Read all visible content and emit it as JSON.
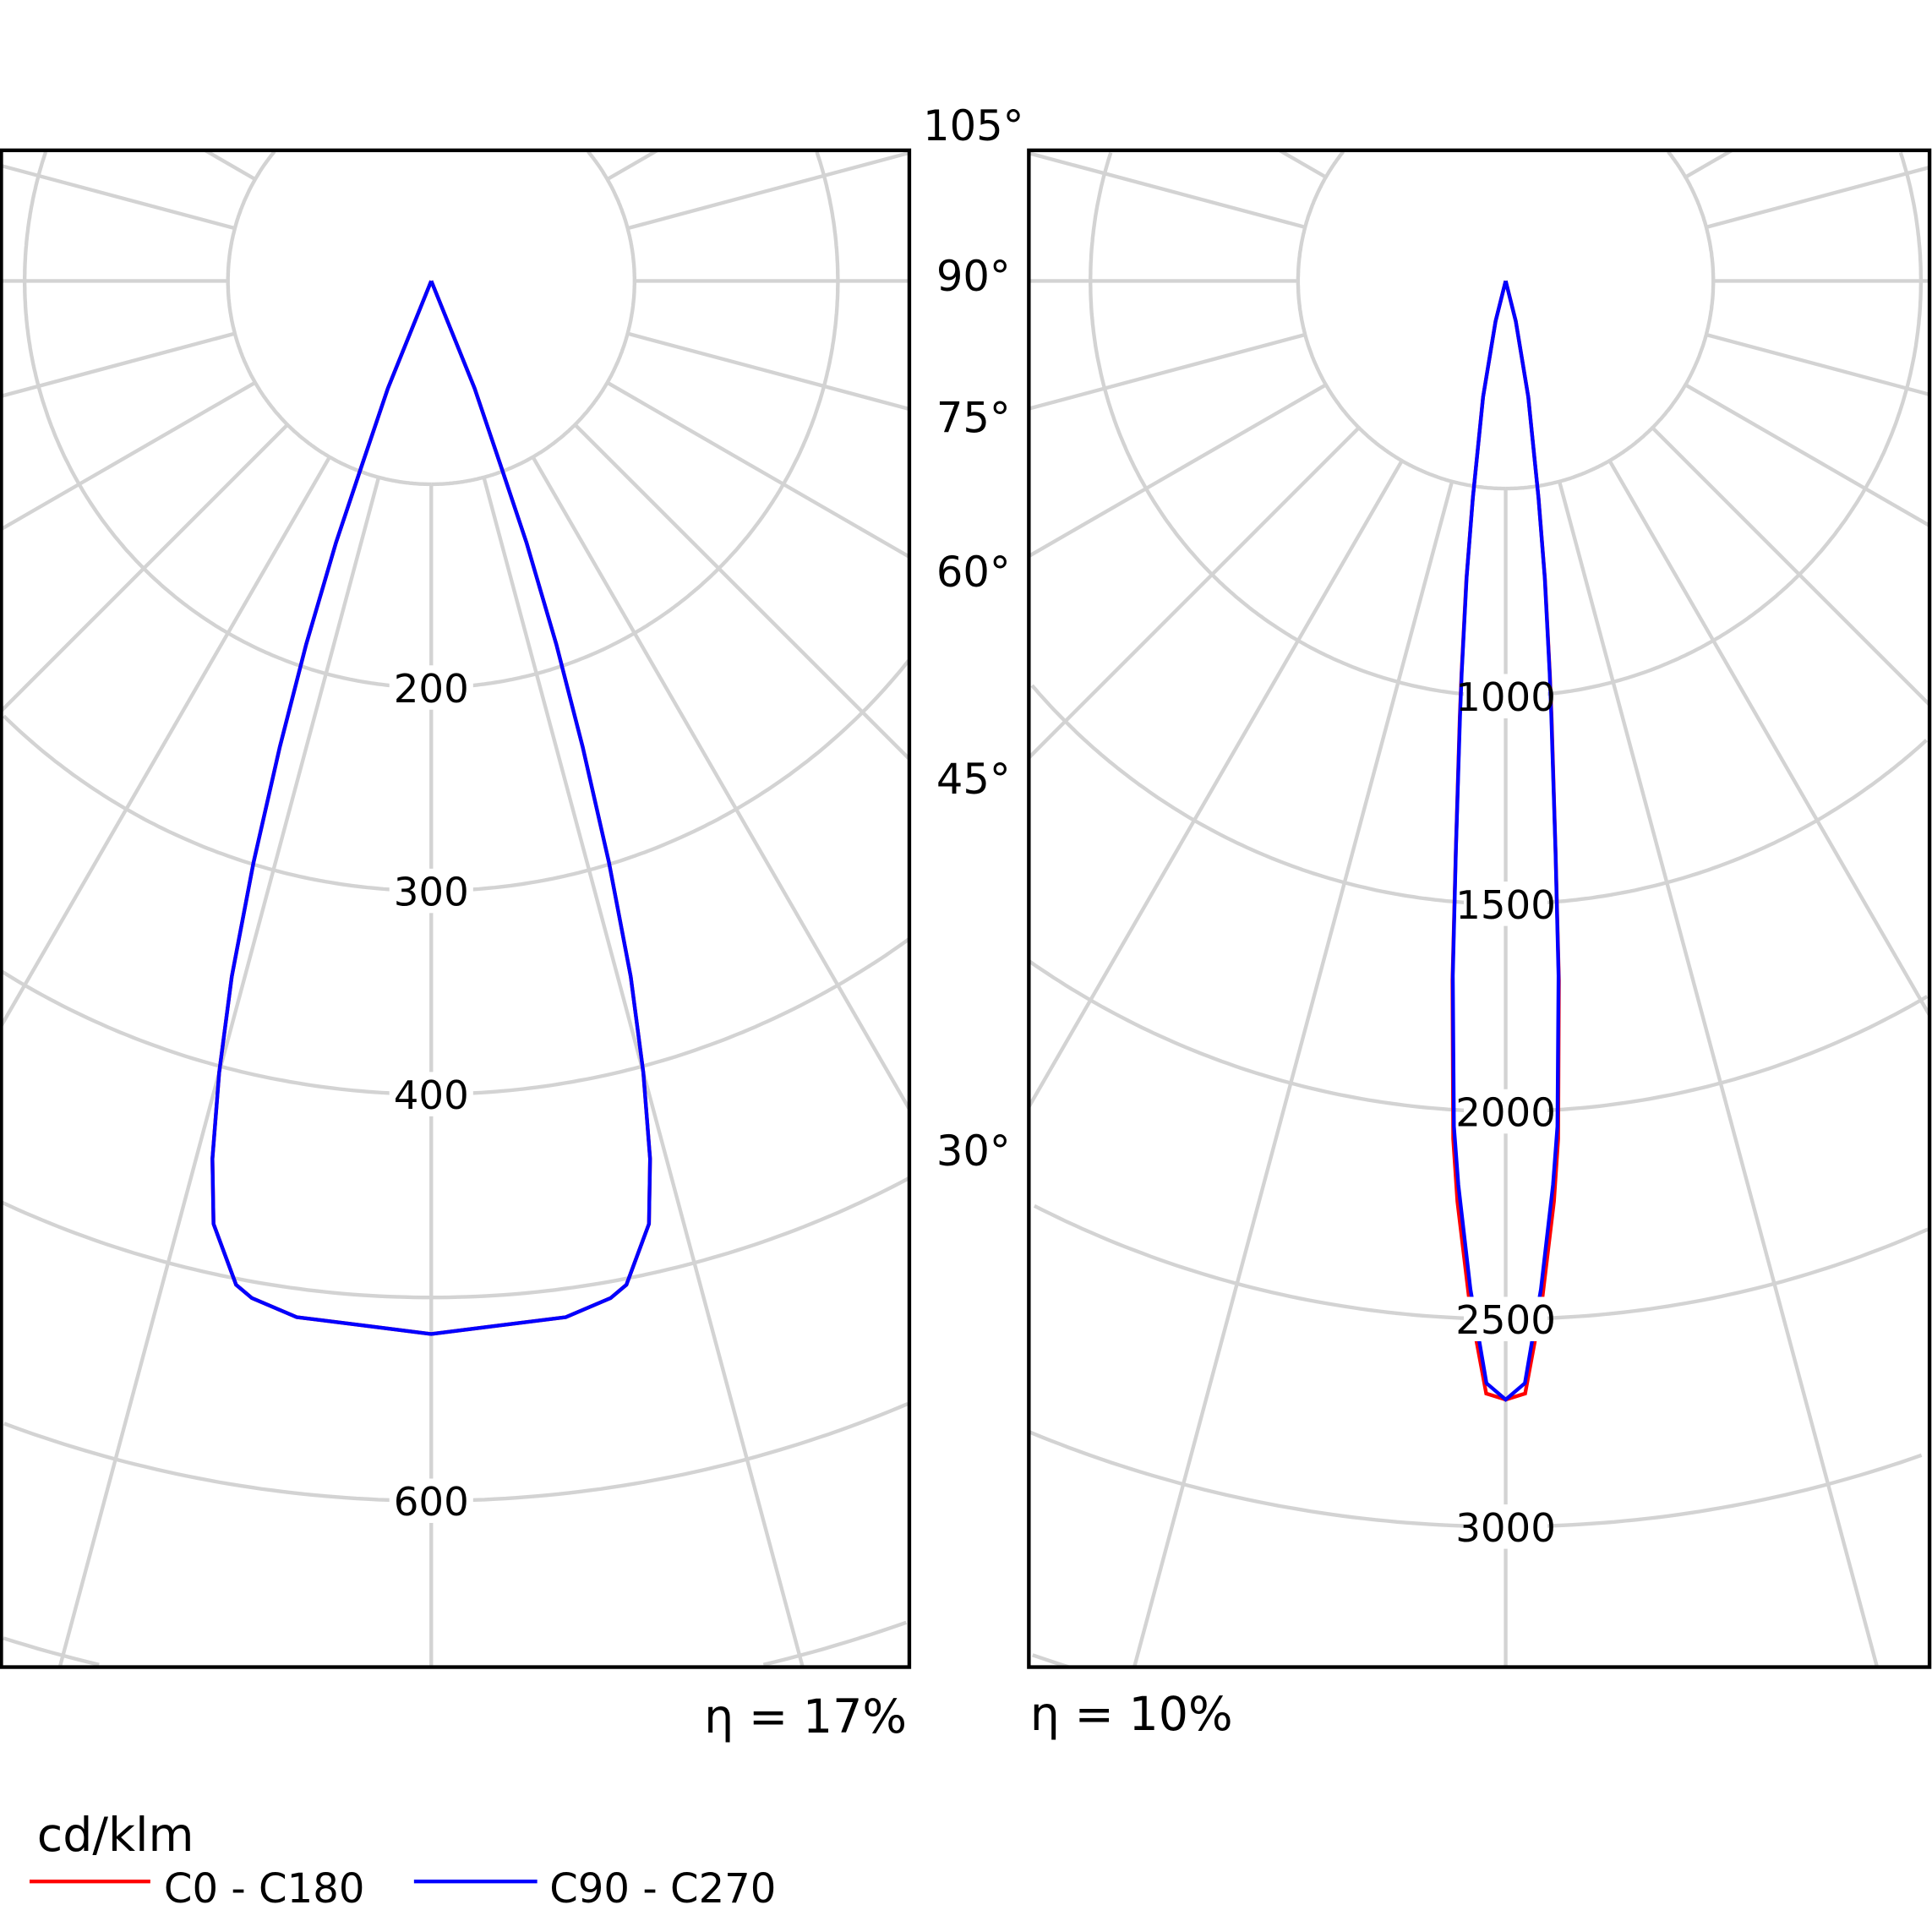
{
  "chart_data": [
    {
      "type": "polar-line",
      "unit_label": "cd/klm",
      "radial_ticks": [
        100,
        200,
        300,
        400,
        500,
        600,
        700
      ],
      "radial_tick_labels": [
        "200",
        "300",
        "400",
        "600"
      ],
      "efficiency_label": "η = 17%",
      "grid": true,
      "series": [
        {
          "name": "C0 - C180",
          "color": "#ff0000",
          "gamma": [
            0,
            3.4,
            7.4,
            10,
            11,
            13,
            14,
            15,
            16,
            17,
            18,
            19,
            20,
            20.6,
            22,
            25
          ],
          "values": [
            518,
            515,
            514,
            508,
            503,
            476,
            445,
            403,
            356,
            299,
            241,
            189,
            137,
            98,
            57,
            0
          ]
        },
        {
          "name": "C90 - C270",
          "color": "#0000ff",
          "gamma": [
            0,
            3.4,
            7.4,
            10,
            11,
            13,
            14,
            15,
            16,
            17,
            18,
            19,
            20,
            20.6,
            22,
            25
          ],
          "values": [
            518,
            515,
            514,
            508,
            503,
            476,
            445,
            403,
            356,
            299,
            241,
            189,
            137,
            98,
            57,
            0
          ]
        }
      ]
    },
    {
      "type": "polar-line",
      "unit_label": "cd/klm",
      "radial_ticks": [
        500,
        1000,
        1500,
        2000,
        2500,
        3000,
        3500
      ],
      "radial_tick_labels": [
        "1000",
        "1500",
        "2000",
        "2500",
        "3000"
      ],
      "efficiency_label": "η = 10%",
      "grid": true,
      "series": [
        {
          "name": "C0 - C180",
          "color": "#ff0000",
          "gamma": [
            0,
            1,
            2,
            3,
            3.5,
            4.35,
            5,
            6,
            6.4,
            7.5,
            8.6,
            11,
            14,
            17
          ],
          "values": [
            2694,
            2680,
            2470,
            2220,
            2070,
            1690,
            1380,
            1060,
            955,
            725,
            530,
            286,
            100,
            0
          ]
        },
        {
          "name": "C90 - C270",
          "color": "#0000ff",
          "gamma": [
            0,
            1,
            2,
            3,
            3.5,
            4.35,
            5,
            6,
            6.4,
            7.5,
            8.6,
            11,
            14,
            17
          ],
          "values": [
            2694,
            2655,
            2430,
            2180,
            2040,
            1678,
            1375,
            1050,
            951,
            720,
            527,
            284,
            100,
            0
          ]
        }
      ]
    }
  ],
  "angle_labels": [
    "105°",
    "90°",
    "75°",
    "60°",
    "45°",
    "30°"
  ],
  "legend": {
    "unit": "cd/klm",
    "items": [
      {
        "label": "C0 - C180",
        "color": "#ff0000"
      },
      {
        "label": "C90 - C270",
        "color": "#0000ff"
      }
    ]
  }
}
